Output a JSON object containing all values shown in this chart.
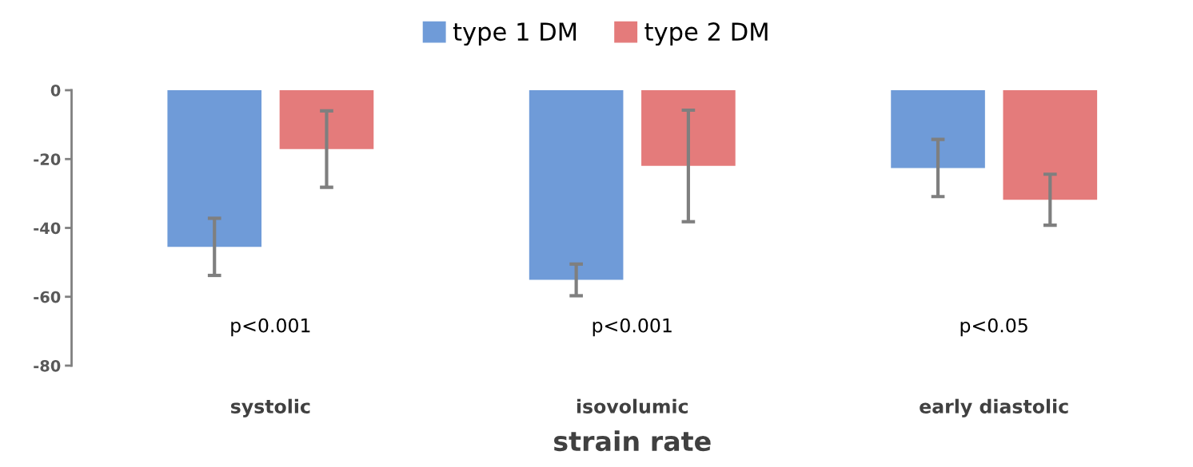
{
  "chart_data": {
    "type": "bar",
    "xlabel": "strain rate",
    "categories": [
      "systolic",
      "isovolumic",
      "early diastolic"
    ],
    "series": [
      {
        "name": "type 1 DM",
        "color": "#6f9bd8",
        "values": [
          -45.5,
          -55.1,
          -22.6
        ],
        "errors": [
          8.3,
          4.6,
          8.3
        ]
      },
      {
        "name": "type 2 DM",
        "color": "#e47b7b",
        "values": [
          -17.1,
          -22,
          -31.8
        ],
        "errors": [
          11.1,
          16.2,
          7.4
        ]
      }
    ],
    "ylim": [
      -80,
      0
    ],
    "yticks": [
      -80,
      -60,
      -40,
      -20,
      0
    ],
    "grid": false,
    "legend": "top",
    "annotations": [
      "p<0.001",
      "p<0.001",
      "p<0.05"
    ]
  }
}
